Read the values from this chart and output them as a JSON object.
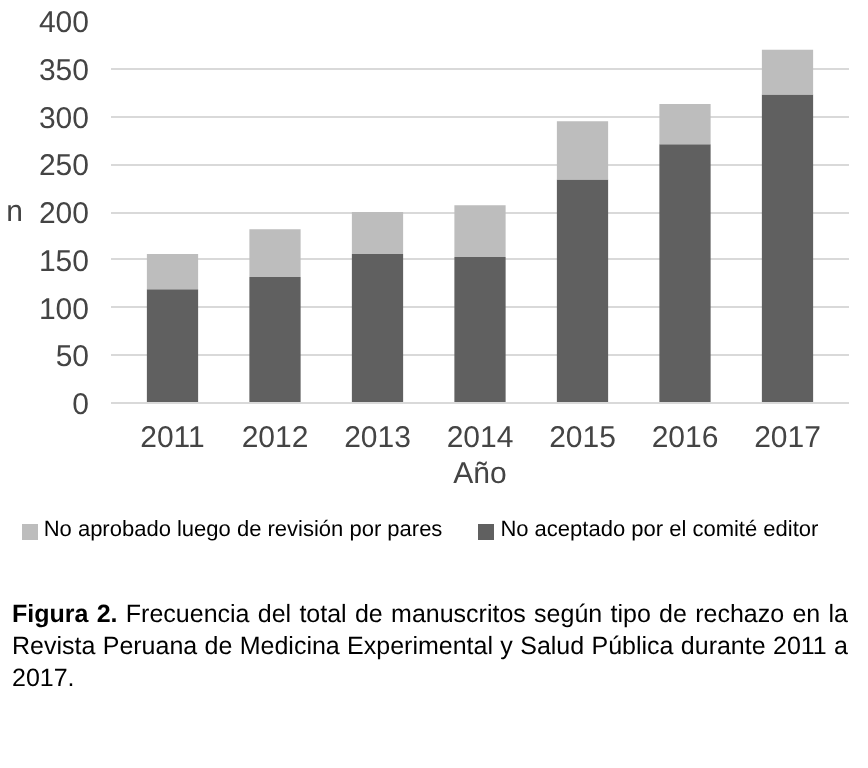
{
  "chart_data": {
    "type": "bar",
    "stacked": true,
    "xlabel": "Año",
    "ylabel": "n",
    "categories": [
      "2011",
      "2012",
      "2013",
      "2014",
      "2015",
      "2016",
      "2017"
    ],
    "series": [
      {
        "name": "No aceptado por el comité editor",
        "color": "#606060",
        "values": [
          119,
          132,
          156,
          153,
          234,
          271,
          323
        ]
      },
      {
        "name": "No aprobado luego de revisión por pares",
        "color": "#bdbdbd",
        "values": [
          37,
          50,
          44,
          54,
          61,
          42,
          47
        ]
      }
    ],
    "ylim": [
      0,
      400
    ],
    "yticks": [
      0,
      50,
      100,
      150,
      200,
      250,
      300,
      350,
      400
    ],
    "grid": "y",
    "legend": "bottom",
    "annotations": [
      "Figura 2. Frecuencia del total de manuscritos según tipo de rechazo en la Revista Peruana de Medicina Experimental y Salud Pública durante 2011 a 2017."
    ]
  }
}
